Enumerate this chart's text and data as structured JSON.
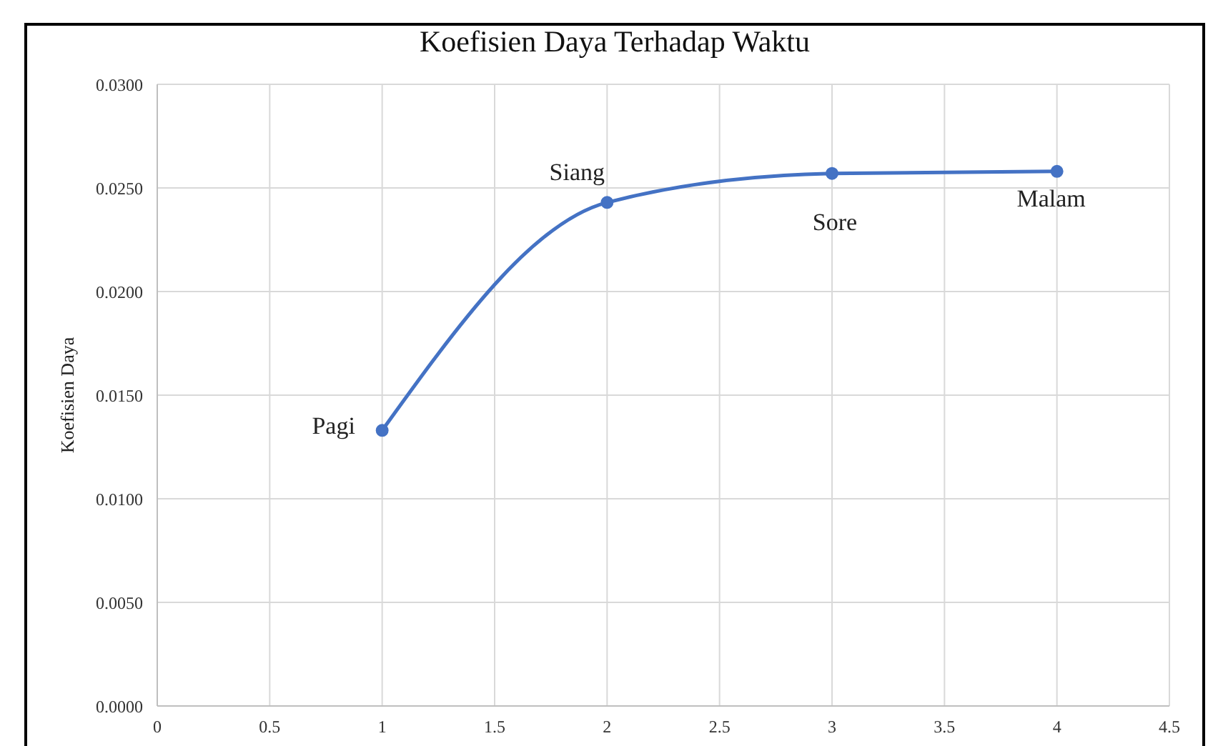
{
  "chart_data": {
    "type": "line",
    "title": "Koefisien Daya Terhadap Waktu",
    "ylabel": "Koefisien Daya",
    "x": [
      1,
      2,
      3,
      4
    ],
    "series": [
      {
        "color": "#4472c4",
        "values": [
          0.0133,
          0.0243,
          0.0257,
          0.0258
        ]
      }
    ],
    "xlim": [
      0,
      4.5
    ],
    "xticks": [
      0,
      0.5,
      1,
      1.5,
      2,
      2.5,
      3,
      3.5,
      4,
      4.5
    ],
    "ylim": [
      0,
      0.03
    ],
    "yticks": [
      {
        "value": 0,
        "label": "0.0000"
      },
      {
        "value": 0.005,
        "label": "0.0050"
      },
      {
        "value": 0.01,
        "label": "0.0100"
      },
      {
        "value": 0.015,
        "label": "0.0150"
      },
      {
        "value": 0.02,
        "label": "0.0200"
      },
      {
        "value": 0.025,
        "label": "0.0250"
      },
      {
        "value": 0.03,
        "label": "0.0300"
      }
    ],
    "grid": true,
    "marker": "circle",
    "line_style": "solid",
    "annotations": [
      {
        "text": "Pagi",
        "x": 1,
        "y": 0.0133
      },
      {
        "text": "Siang",
        "x": 2,
        "y": 0.0243
      },
      {
        "text": "Sore",
        "x": 3,
        "y": 0.0257
      },
      {
        "text": "Malam",
        "x": 4,
        "y": 0.0258
      }
    ]
  }
}
